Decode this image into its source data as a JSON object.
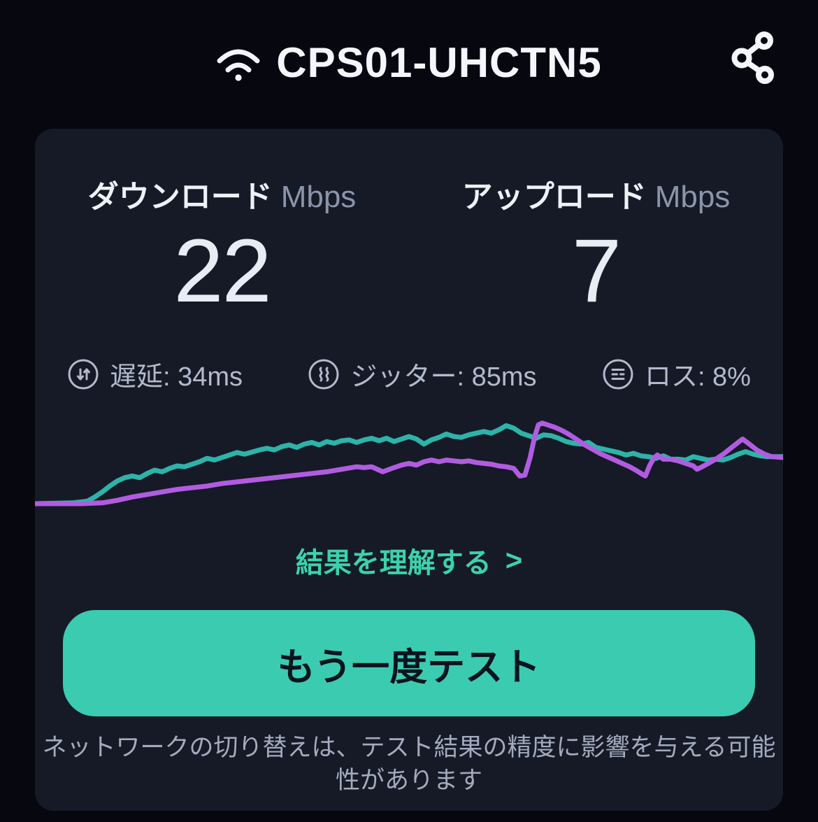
{
  "header": {
    "ssid": "CPS01-UHCTN5",
    "wifi_icon": "wifi-icon",
    "share_icon": "share-nodes-icon"
  },
  "results": {
    "download": {
      "label": "ダウンロード",
      "unit": "Mbps",
      "value": "22"
    },
    "upload": {
      "label": "アップロード",
      "unit": "Mbps",
      "value": "7"
    }
  },
  "stats": [
    {
      "icon": "latency-icon",
      "text": "遅延: 34ms"
    },
    {
      "icon": "jitter-icon",
      "text": "ジッター: 85ms"
    },
    {
      "icon": "loss-icon",
      "text": "ロス: 8%"
    }
  ],
  "link": {
    "text": "結果を理解する",
    "chevron": ">"
  },
  "button": {
    "label": "もう一度テスト"
  },
  "footer_note": "ネットワークの切り替えは、テスト結果の精度に影響を与える可能性があります",
  "theme": {
    "page_bg": "#06070f",
    "card_bg": "#151a26",
    "accent_teal": "#3bd2ae",
    "button_bg": "#3bcbb0",
    "button_text": "#0a141f",
    "muted_text": "#8b95aa",
    "stat_text": "#b2bacc"
  },
  "chart_data": {
    "type": "line",
    "title": "",
    "xlabel": "",
    "ylabel": "",
    "axes_visible": false,
    "grid": false,
    "legend_position": "none",
    "note": "speed-over-time sparkline; x = test progress %, y = normalized speed 0-100 (each series scaled to own peak); final results: download 22 Mbps, upload 7 Mbps",
    "series": [
      {
        "name": "download",
        "color": "#2eb3a9",
        "final_value_mbps": 22,
        "points": [
          [
            0,
            0
          ],
          [
            5,
            1
          ],
          [
            7,
            3
          ],
          [
            8,
            8
          ],
          [
            9,
            14
          ],
          [
            10,
            21
          ],
          [
            11,
            27
          ],
          [
            12,
            31
          ],
          [
            13,
            33
          ],
          [
            14,
            31
          ],
          [
            15,
            36
          ],
          [
            16,
            40
          ],
          [
            17,
            38
          ],
          [
            18,
            42
          ],
          [
            19,
            45
          ],
          [
            20,
            44
          ],
          [
            22,
            50
          ],
          [
            23,
            54
          ],
          [
            24,
            52
          ],
          [
            26,
            58
          ],
          [
            27,
            61
          ],
          [
            28,
            59
          ],
          [
            30,
            64
          ],
          [
            31,
            66
          ],
          [
            32,
            64
          ],
          [
            33,
            68
          ],
          [
            34,
            70
          ],
          [
            35,
            67
          ],
          [
            36,
            71
          ],
          [
            37,
            73
          ],
          [
            38,
            70
          ],
          [
            39,
            74
          ],
          [
            40,
            72
          ],
          [
            41,
            75
          ],
          [
            42,
            76
          ],
          [
            43,
            73
          ],
          [
            44,
            76
          ],
          [
            45,
            78
          ],
          [
            46,
            75
          ],
          [
            47,
            78
          ],
          [
            48,
            74
          ],
          [
            49,
            77
          ],
          [
            50,
            80
          ],
          [
            51,
            77
          ],
          [
            52,
            71
          ],
          [
            53,
            76
          ],
          [
            54,
            79
          ],
          [
            55,
            83
          ],
          [
            56,
            80
          ],
          [
            57,
            79
          ],
          [
            58,
            82
          ],
          [
            59,
            84
          ],
          [
            60,
            86
          ],
          [
            61,
            84
          ],
          [
            62,
            88
          ],
          [
            63,
            93
          ],
          [
            64,
            90
          ],
          [
            64.5,
            87
          ],
          [
            65,
            84
          ],
          [
            66,
            81
          ],
          [
            67,
            78
          ],
          [
            68,
            82
          ],
          [
            69,
            81
          ],
          [
            70,
            78
          ],
          [
            71,
            74
          ],
          [
            72,
            72
          ],
          [
            73,
            71
          ],
          [
            74,
            73
          ],
          [
            75,
            67
          ],
          [
            76,
            65
          ],
          [
            77,
            63
          ],
          [
            78,
            61
          ],
          [
            79,
            58
          ],
          [
            80,
            60
          ],
          [
            81,
            57
          ],
          [
            82,
            56
          ],
          [
            83,
            54
          ],
          [
            84,
            57
          ],
          [
            85,
            53
          ],
          [
            86,
            53
          ],
          [
            87,
            52
          ],
          [
            88,
            56
          ],
          [
            89,
            54
          ],
          [
            90,
            52
          ],
          [
            91,
            53
          ],
          [
            92,
            52
          ],
          [
            93,
            55
          ],
          [
            94,
            59
          ],
          [
            95,
            62
          ],
          [
            96,
            59
          ],
          [
            97,
            57
          ],
          [
            98,
            56
          ],
          [
            100,
            56
          ]
        ]
      },
      {
        "name": "upload",
        "color": "#b15ce0",
        "final_value_mbps": 7,
        "points": [
          [
            0,
            0
          ],
          [
            6,
            0
          ],
          [
            9,
            1
          ],
          [
            11,
            4
          ],
          [
            13,
            8
          ],
          [
            15,
            11
          ],
          [
            17,
            14
          ],
          [
            19,
            17
          ],
          [
            21,
            19
          ],
          [
            23,
            21
          ],
          [
            25,
            24
          ],
          [
            28,
            27
          ],
          [
            31,
            30
          ],
          [
            33,
            32
          ],
          [
            35,
            34
          ],
          [
            37,
            36
          ],
          [
            39,
            38
          ],
          [
            41,
            41
          ],
          [
            43,
            44
          ],
          [
            44,
            43
          ],
          [
            45,
            44
          ],
          [
            46,
            40
          ],
          [
            46.5,
            38
          ],
          [
            48,
            43
          ],
          [
            49,
            46
          ],
          [
            50,
            48
          ],
          [
            51,
            46
          ],
          [
            52,
            50
          ],
          [
            53,
            52
          ],
          [
            54,
            50
          ],
          [
            55,
            52
          ],
          [
            56,
            51
          ],
          [
            57,
            50
          ],
          [
            58,
            51
          ],
          [
            59,
            49
          ],
          [
            60,
            48
          ],
          [
            61,
            47
          ],
          [
            62,
            45
          ],
          [
            63,
            44
          ],
          [
            64,
            42
          ],
          [
            64.8,
            33
          ],
          [
            65.5,
            34
          ],
          [
            66.2,
            55
          ],
          [
            66.8,
            80
          ],
          [
            67.3,
            94
          ],
          [
            67.8,
            96
          ],
          [
            68.5,
            94
          ],
          [
            69.5,
            91
          ],
          [
            70.5,
            87
          ],
          [
            71.5,
            82
          ],
          [
            72.5,
            76
          ],
          [
            73.5,
            70
          ],
          [
            74.5,
            65
          ],
          [
            75.5,
            60
          ],
          [
            76.5,
            56
          ],
          [
            77.5,
            52
          ],
          [
            78.5,
            48
          ],
          [
            79.5,
            44
          ],
          [
            80.5,
            39
          ],
          [
            81.2,
            35
          ],
          [
            81.6,
            33
          ],
          [
            82.2,
            46
          ],
          [
            82.8,
            55
          ],
          [
            83.2,
            58
          ],
          [
            84,
            53
          ],
          [
            85,
            53
          ],
          [
            86,
            51
          ],
          [
            87,
            48
          ],
          [
            88,
            45
          ],
          [
            88.5,
            41
          ],
          [
            89.2,
            44
          ],
          [
            90,
            48
          ],
          [
            91,
            53
          ],
          [
            92,
            59
          ],
          [
            93,
            66
          ],
          [
            94,
            73
          ],
          [
            94.6,
            77
          ],
          [
            95.5,
            71
          ],
          [
            96.5,
            64
          ],
          [
            97.5,
            59
          ],
          [
            98.5,
            56
          ],
          [
            100,
            55
          ]
        ]
      }
    ]
  }
}
